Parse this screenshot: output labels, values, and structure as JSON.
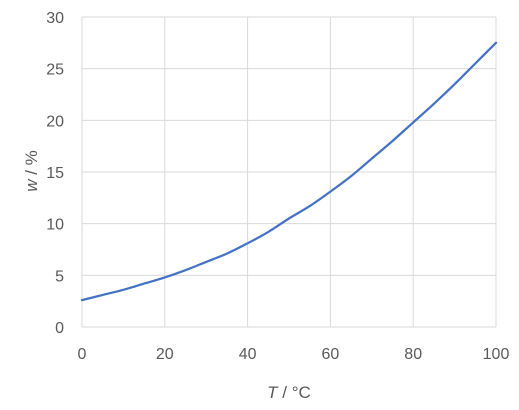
{
  "chart_data": {
    "type": "line",
    "title": "",
    "xlabel_var": "T",
    "xlabel_unit": " / °C",
    "ylabel_var": "w",
    "ylabel_unit": " / %",
    "xlim": [
      0,
      100
    ],
    "ylim": [
      0,
      30
    ],
    "xticks": [
      0,
      20,
      40,
      60,
      80,
      100
    ],
    "yticks": [
      0,
      5,
      10,
      15,
      20,
      25,
      30
    ],
    "grid": true,
    "legend": "none",
    "series": [
      {
        "color": "#4472c4",
        "x": [
          0,
          5,
          10,
          15,
          20,
          25,
          30,
          35,
          40,
          45,
          50,
          55,
          60,
          65,
          70,
          75,
          80,
          85,
          90,
          95,
          100
        ],
        "y": [
          2.6,
          3.1,
          3.6,
          4.2,
          4.8,
          5.5,
          6.3,
          7.1,
          8.1,
          9.2,
          10.5,
          11.7,
          13.1,
          14.6,
          16.3,
          18.0,
          19.8,
          21.6,
          23.5,
          25.5,
          27.5
        ]
      }
    ]
  }
}
